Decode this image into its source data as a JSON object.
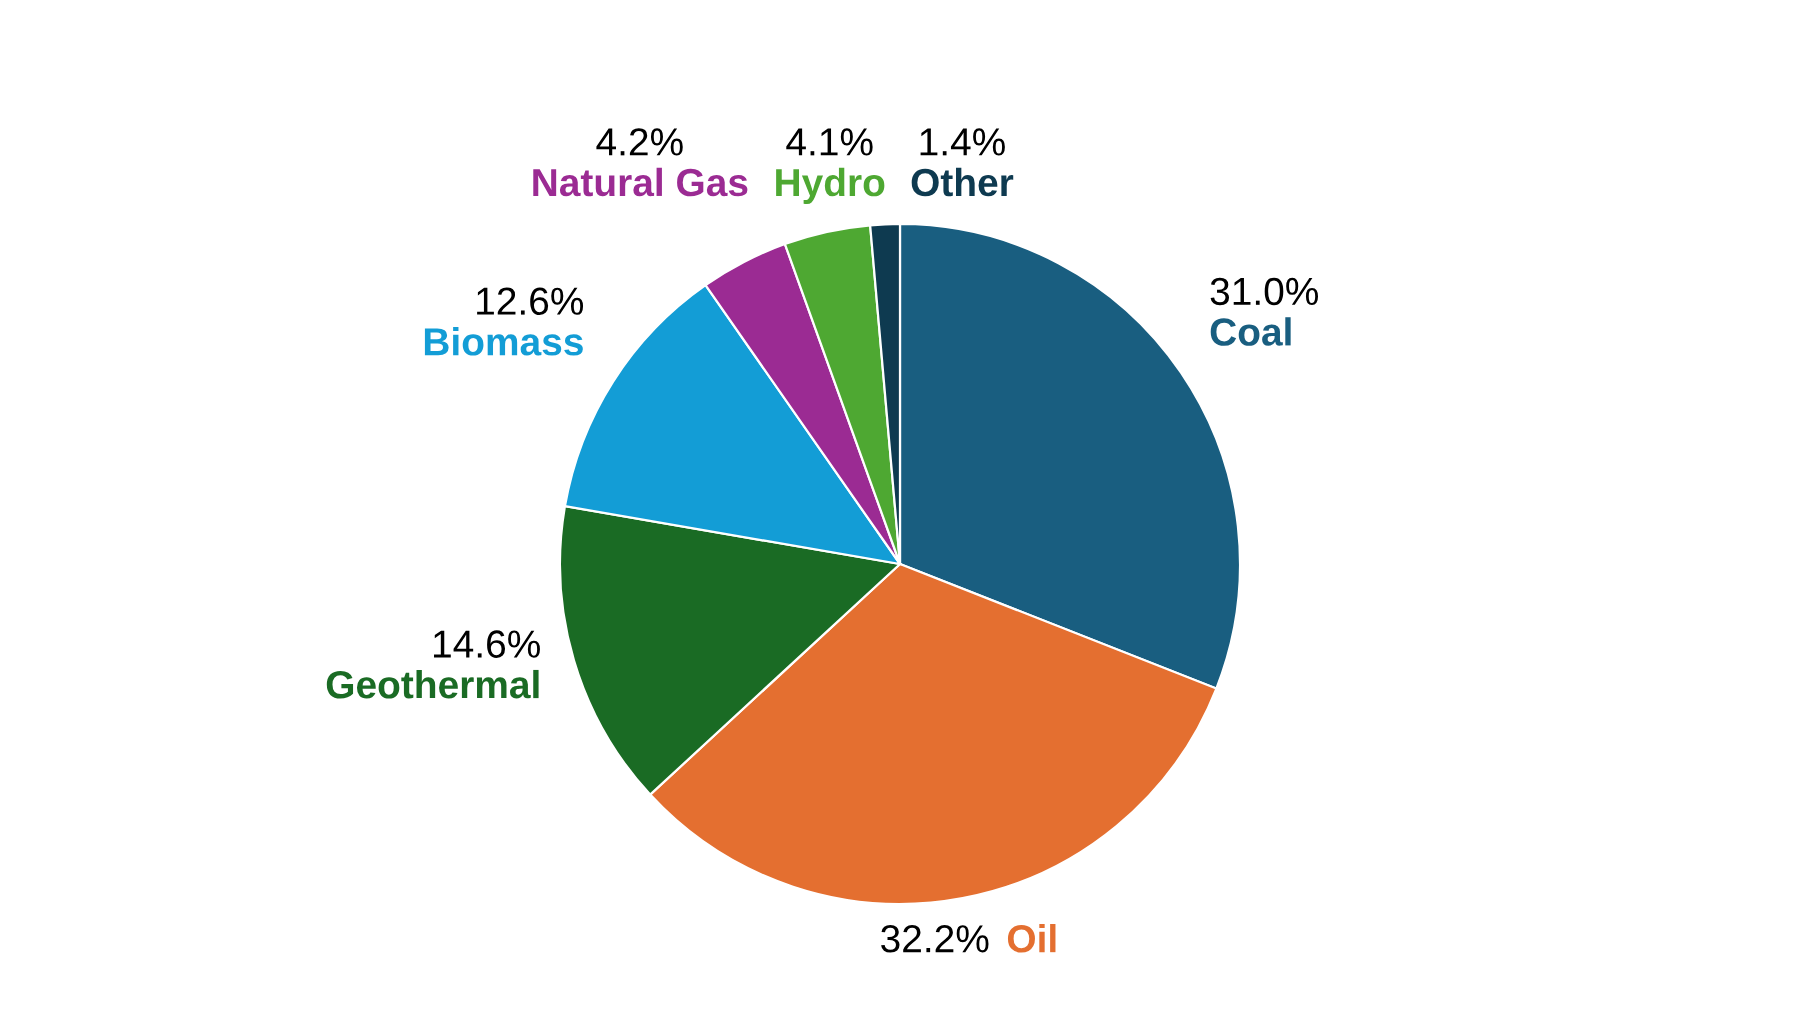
{
  "chart_data": {
    "type": "pie",
    "categories": [
      "Coal",
      "Oil",
      "Geothermal",
      "Biomass",
      "Natural Gas",
      "Hydro",
      "Other"
    ],
    "values": [
      31.0,
      32.2,
      14.6,
      12.6,
      4.2,
      4.1,
      1.4
    ],
    "value_labels": [
      "31.0%",
      "32.2%",
      "14.6%",
      "12.6%",
      "4.2%",
      "4.1%",
      "1.4%"
    ],
    "colors": [
      "#195e80",
      "#e46f30",
      "#1a6b24",
      "#139dd6",
      "#9b2b93",
      "#4ea832",
      "#0e3a50"
    ]
  }
}
